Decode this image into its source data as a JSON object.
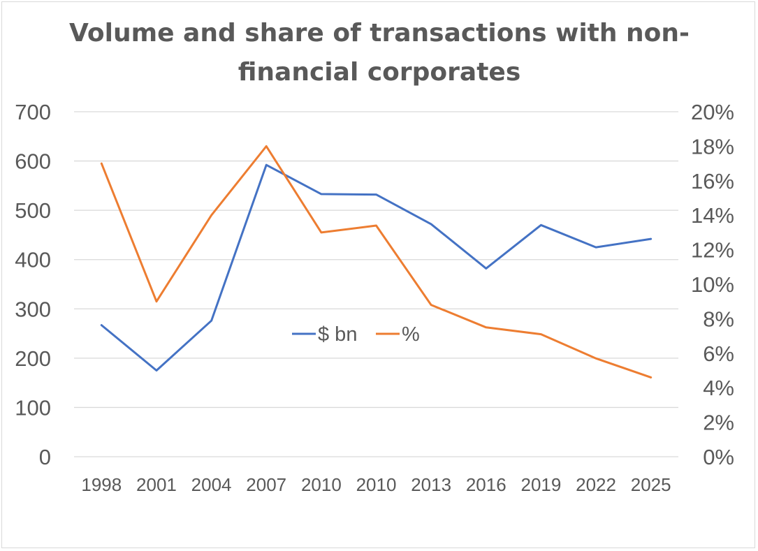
{
  "chart_data": {
    "type": "line",
    "title_lines": [
      "Volume and share of transactions with non-",
      "financial corporates"
    ],
    "categories": [
      "1998",
      "2001",
      "2004",
      "2007",
      "2010",
      "2010",
      "2013",
      "2016",
      "2019",
      "2022",
      "2025"
    ],
    "series": [
      {
        "name": "$ bn",
        "axis": "left",
        "color": "#4472C4",
        "values": [
          267,
          175,
          276,
          592,
          533,
          532,
          472,
          382,
          470,
          425,
          442
        ]
      },
      {
        "name": "%",
        "axis": "right",
        "color": "#ED7D31",
        "values": [
          0.17,
          0.09,
          0.14,
          0.18,
          0.13,
          0.134,
          0.088,
          0.075,
          0.071,
          0.057,
          0.046
        ]
      }
    ],
    "y_left": {
      "min": 0,
      "max": 700,
      "ticks": [
        0,
        100,
        200,
        300,
        400,
        500,
        600,
        700
      ],
      "tick_labels": [
        "0",
        "100",
        "200",
        "300",
        "400",
        "500",
        "600",
        "700"
      ]
    },
    "y_right": {
      "min": 0,
      "max": 0.2,
      "ticks": [
        0,
        0.02,
        0.04,
        0.06,
        0.08,
        0.1,
        0.12,
        0.14,
        0.16,
        0.18,
        0.2
      ],
      "tick_labels": [
        "0%",
        "2%",
        "4%",
        "6%",
        "8%",
        "10%",
        "12%",
        "14%",
        "16%",
        "18%",
        "20%"
      ]
    },
    "gridlines": true,
    "legend_position": "center"
  }
}
